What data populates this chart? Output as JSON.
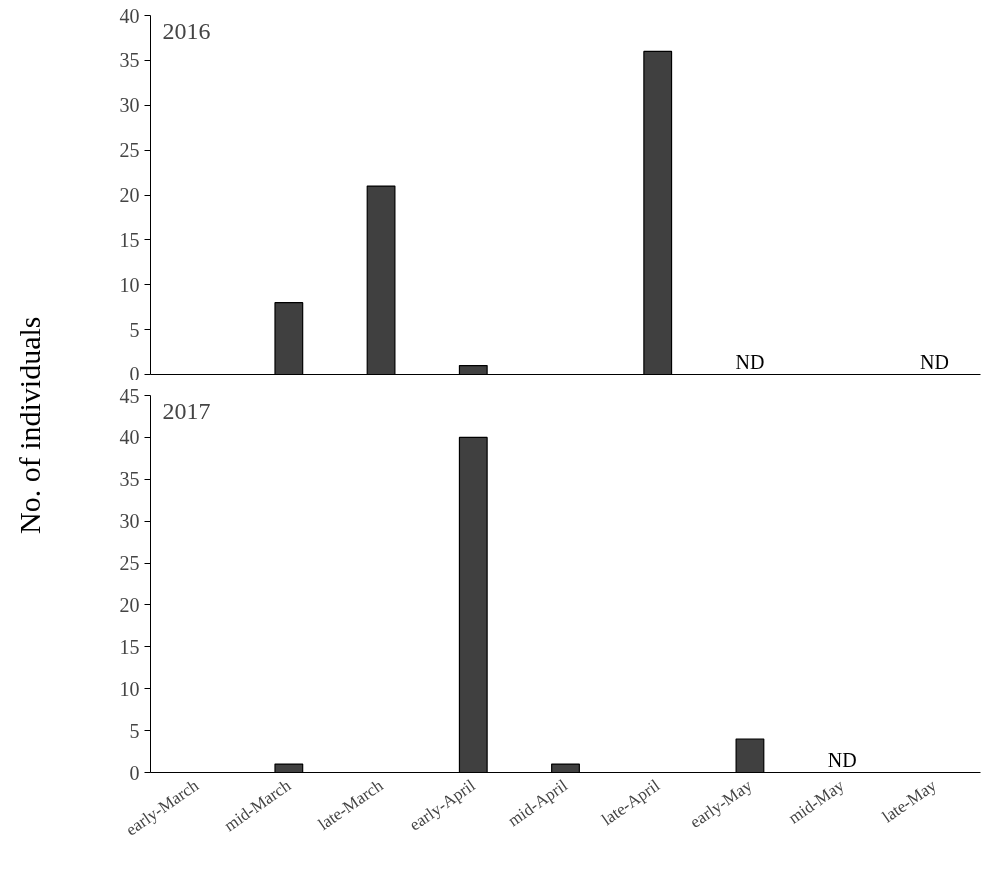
{
  "chart_data": [
    {
      "type": "bar",
      "ylabel": "No. of individuals",
      "categories": [
        null,
        null,
        null,
        null,
        null,
        null,
        null,
        null,
        null
      ],
      "series": [
        {
          "color": "#404040",
          "values": [
            0,
            8,
            21,
            1,
            0,
            36,
            null,
            0,
            null
          ]
        }
      ],
      "ylim": [
        0,
        40
      ],
      "yticks": [
        0,
        5,
        10,
        15,
        20,
        25,
        30,
        35,
        40
      ],
      "tick_labels": "y",
      "annotations": [
        "2016",
        "ND",
        "ND"
      ]
    },
    {
      "type": "bar",
      "categories": [
        "early-March",
        "mid-March",
        "late-March",
        "early-April",
        "mid-April",
        "late-April",
        "early-May",
        "mid-May",
        "late-May"
      ],
      "series": [
        {
          "color": "#404040",
          "values": [
            0,
            1,
            0,
            40,
            1,
            0,
            4,
            null,
            0
          ]
        }
      ],
      "ylim": [
        0,
        45
      ],
      "yticks": [
        0,
        5,
        10,
        15,
        20,
        25,
        30,
        35,
        40,
        45
      ],
      "annotations": [
        "2017",
        "ND"
      ]
    }
  ]
}
